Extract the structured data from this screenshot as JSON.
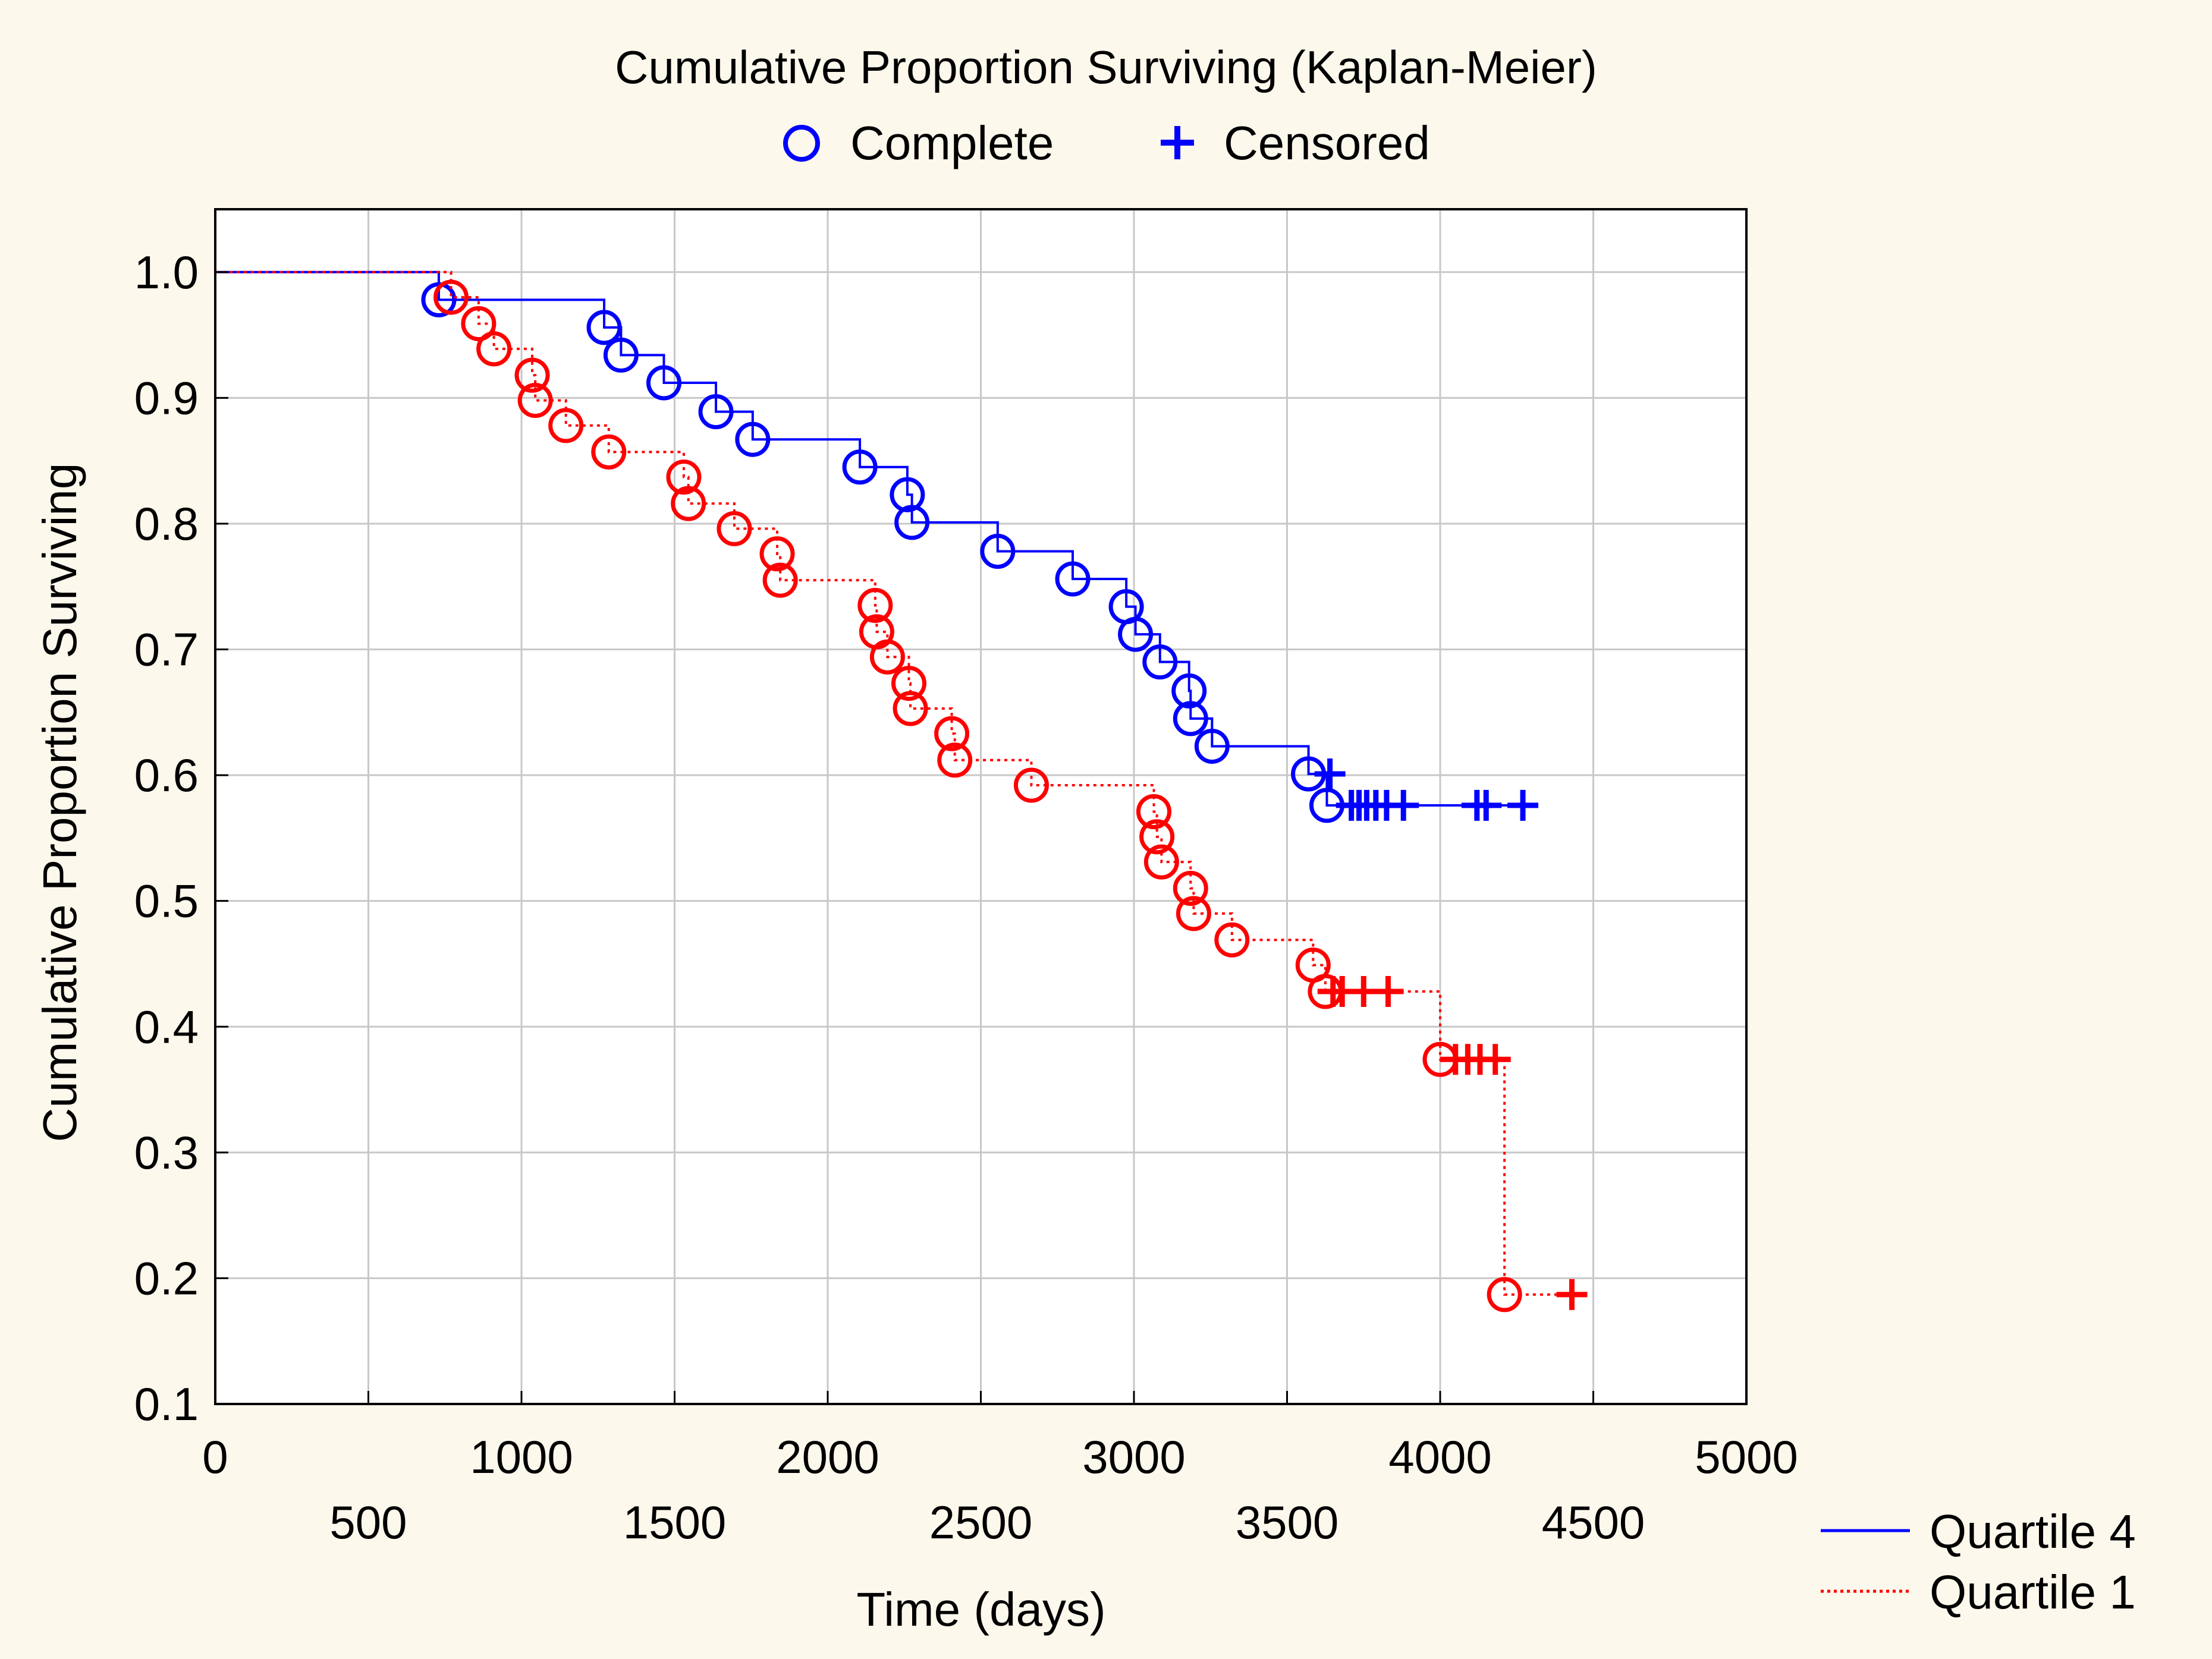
{
  "colors": {
    "background": "#fdf8ec",
    "plot_bg": "#ffffff",
    "grid": "#c8c8c8",
    "quartile4": "#0000ff",
    "quartile1": "#ff0000"
  },
  "chart_data": {
    "type": "line",
    "title": "Cumulative Proportion Surviving (Kaplan-Meier)",
    "top_legend": {
      "complete": "Complete",
      "censored": "Censored"
    },
    "xlabel": "Time (days)",
    "ylabel": "Cumulative Proportion Surviving",
    "xlim": [
      0,
      5000
    ],
    "ylim": [
      0.1,
      1.05
    ],
    "x_ticks_upper": [
      "0",
      "1000",
      "2000",
      "3000",
      "4000",
      "5000"
    ],
    "x_ticks_lower": [
      "500",
      "1500",
      "2500",
      "3500",
      "4500"
    ],
    "y_ticks": [
      "1.0",
      "0.9",
      "0.8",
      "0.7",
      "0.6",
      "0.5",
      "0.4",
      "0.3",
      "0.2",
      "0.1"
    ],
    "grid": true,
    "legend_position": "bottom-right",
    "series": [
      {
        "name": "Quartile 4",
        "style": "solid",
        "start": [
          0,
          1.0
        ],
        "events": [
          [
            730,
            0.978
          ],
          [
            1270,
            0.956
          ],
          [
            1325,
            0.934
          ],
          [
            1465,
            0.912
          ],
          [
            1635,
            0.889
          ],
          [
            1755,
            0.867
          ],
          [
            2105,
            0.845
          ],
          [
            2260,
            0.823
          ],
          [
            2275,
            0.801
          ],
          [
            2555,
            0.778
          ],
          [
            2800,
            0.756
          ],
          [
            2975,
            0.734
          ],
          [
            3005,
            0.712
          ],
          [
            3085,
            0.69
          ],
          [
            3180,
            0.667
          ],
          [
            3185,
            0.645
          ],
          [
            3255,
            0.623
          ],
          [
            3570,
            0.601
          ],
          [
            3630,
            0.576
          ]
        ],
        "censored": [
          [
            3640,
            0.601
          ],
          [
            3710,
            0.576
          ],
          [
            3735,
            0.576
          ],
          [
            3760,
            0.576
          ],
          [
            3790,
            0.576
          ],
          [
            3825,
            0.576
          ],
          [
            3880,
            0.576
          ],
          [
            4120,
            0.576
          ],
          [
            4150,
            0.576
          ],
          [
            4270,
            0.576
          ]
        ],
        "end_x": 4285
      },
      {
        "name": "Quartile 1",
        "style": "dotted",
        "start": [
          0,
          1.0
        ],
        "events": [
          [
            770,
            0.98
          ],
          [
            860,
            0.959
          ],
          [
            910,
            0.939
          ],
          [
            1035,
            0.918
          ],
          [
            1045,
            0.898
          ],
          [
            1145,
            0.878
          ],
          [
            1285,
            0.857
          ],
          [
            1530,
            0.837
          ],
          [
            1545,
            0.816
          ],
          [
            1695,
            0.796
          ],
          [
            1835,
            0.776
          ],
          [
            1845,
            0.755
          ],
          [
            2155,
            0.735
          ],
          [
            2160,
            0.714
          ],
          [
            2195,
            0.694
          ],
          [
            2265,
            0.673
          ],
          [
            2270,
            0.653
          ],
          [
            2405,
            0.633
          ],
          [
            2415,
            0.612
          ],
          [
            2665,
            0.592
          ],
          [
            3065,
            0.571
          ],
          [
            3075,
            0.551
          ],
          [
            3090,
            0.531
          ],
          [
            3185,
            0.51
          ],
          [
            3195,
            0.49
          ],
          [
            3320,
            0.469
          ],
          [
            3585,
            0.449
          ],
          [
            3625,
            0.428
          ],
          [
            4000,
            0.374
          ],
          [
            4210,
            0.187
          ]
        ],
        "censored": [
          [
            3650,
            0.428
          ],
          [
            3680,
            0.428
          ],
          [
            3750,
            0.428
          ],
          [
            3830,
            0.428
          ],
          [
            4050,
            0.374
          ],
          [
            4090,
            0.374
          ],
          [
            4130,
            0.374
          ],
          [
            4180,
            0.374
          ],
          [
            4430,
            0.187
          ]
        ],
        "end_x": 4440
      }
    ]
  }
}
